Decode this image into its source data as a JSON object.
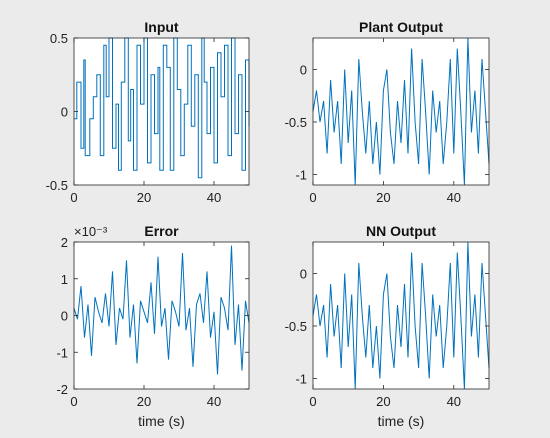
{
  "chart_data": [
    {
      "type": "line",
      "title": "Input",
      "xlabel": "",
      "ylabel": "",
      "xlim": [
        0,
        50
      ],
      "ylim": [
        -0.5,
        0.5
      ],
      "xticks": [
        "0",
        "20",
        "40"
      ],
      "yticks": [
        "-0.5",
        "0",
        "0.5"
      ],
      "exponent_label": "",
      "color": "#0072bd",
      "style": "step",
      "series": [
        {
          "x": [
            0,
            0.8,
            2,
            2.8,
            3.2,
            4.5,
            5.5,
            6.5,
            7.5,
            8.5,
            9.2,
            10,
            11,
            12,
            12.7,
            13.5,
            14.5,
            15.5,
            16.2,
            17,
            18,
            19,
            20,
            21,
            22,
            23,
            24,
            24.5,
            25.5,
            26.5,
            27.5,
            28.5,
            29.5,
            30.5,
            31.5,
            32.5,
            33.5,
            34.5,
            35.5,
            36.5,
            37.2,
            38,
            39,
            40,
            41,
            42,
            43,
            44,
            45,
            46,
            47,
            48,
            49,
            50
          ],
          "y": [
            -0.05,
            0.2,
            -0.25,
            0.35,
            -0.3,
            -0.05,
            0.1,
            0.25,
            -0.3,
            0.45,
            0.1,
            0.5,
            -0.25,
            0.05,
            -0.4,
            0.2,
            0.5,
            -0.2,
            0.15,
            -0.4,
            0.45,
            0.05,
            0.5,
            -0.35,
            0.25,
            -0.15,
            0.3,
            -0.4,
            0.45,
            0.3,
            -0.4,
            0.5,
            0.15,
            -0.3,
            0.05,
            0.45,
            -0.1,
            0.25,
            -0.45,
            0.5,
            0.2,
            -0.15,
            0.3,
            -0.35,
            0.4,
            0.1,
            0.45,
            -0.3,
            0.5,
            -0.15,
            0.25,
            -0.4,
            0.35,
            -0.1
          ]
        }
      ]
    },
    {
      "type": "line",
      "title": "Plant Output",
      "xlabel": "",
      "ylabel": "",
      "xlim": [
        0,
        50
      ],
      "ylim": [
        -1.1,
        0.3
      ],
      "xticks": [
        "0",
        "20",
        "40"
      ],
      "yticks": [
        "-1",
        "-0.5",
        "0"
      ],
      "exponent_label": "",
      "color": "#0072bd",
      "style": "line",
      "series": [
        {
          "x": [
            0,
            1,
            2,
            3,
            4,
            5,
            6,
            7,
            8,
            9,
            10,
            11,
            12,
            13,
            14,
            15,
            16,
            17,
            18,
            19,
            20,
            21,
            22,
            23,
            24,
            25,
            26,
            27,
            28,
            29,
            30,
            31,
            32,
            33,
            34,
            35,
            36,
            37,
            38,
            39,
            40,
            41,
            42,
            43,
            44,
            45,
            46,
            47,
            48,
            49,
            50
          ],
          "y": [
            -0.4,
            -0.2,
            -0.5,
            -0.3,
            -0.8,
            -0.1,
            -0.6,
            -0.3,
            -0.9,
            0.0,
            -0.7,
            -0.2,
            -1.1,
            0.1,
            -0.4,
            -0.8,
            -0.3,
            -0.9,
            -0.5,
            -1.0,
            -0.2,
            0.0,
            -0.6,
            -0.9,
            -0.3,
            -0.7,
            -0.1,
            -0.8,
            0.2,
            -0.5,
            -0.9,
            0.1,
            -0.4,
            -1.0,
            -0.2,
            -0.6,
            -0.3,
            -0.9,
            -0.5,
            0.1,
            -0.8,
            0.2,
            -0.4,
            -1.1,
            0.3,
            -0.6,
            -0.2,
            -0.8,
            0.1,
            -0.4,
            -0.9
          ]
        }
      ]
    },
    {
      "type": "line",
      "title": "Error",
      "xlabel": "time (s)",
      "ylabel": "",
      "xlim": [
        0,
        50
      ],
      "ylim": [
        -2,
        2
      ],
      "xticks": [
        "0",
        "20",
        "40"
      ],
      "yticks": [
        "-2",
        "-1",
        "0",
        "1",
        "2"
      ],
      "exponent_label": "×10⁻³",
      "color": "#0072bd",
      "style": "line",
      "series": [
        {
          "x": [
            0,
            1,
            2,
            3,
            4,
            5,
            6,
            7,
            8,
            9,
            10,
            11,
            12,
            13,
            14,
            15,
            16,
            17,
            18,
            19,
            20,
            21,
            22,
            23,
            24,
            25,
            26,
            27,
            28,
            29,
            30,
            31,
            32,
            33,
            34,
            35,
            36,
            37,
            38,
            39,
            40,
            41,
            42,
            43,
            44,
            45,
            46,
            47,
            48,
            49,
            50
          ],
          "y": [
            0.2,
            -0.1,
            0.8,
            -0.6,
            0.3,
            -1.1,
            0.5,
            0.1,
            -0.2,
            0.6,
            -0.3,
            1.2,
            -0.8,
            0.2,
            -0.1,
            1.5,
            -0.6,
            0.3,
            -1.3,
            0.4,
            0.1,
            -0.2,
            0.9,
            -0.5,
            1.6,
            -0.3,
            0.2,
            -1.2,
            0.4,
            0.1,
            -0.3,
            1.7,
            -0.4,
            0.2,
            -1.4,
            0.3,
            0.6,
            -0.2,
            1.2,
            -0.6,
            0.1,
            -1.6,
            0.5,
            0.2,
            -0.4,
            1.9,
            -0.8,
            0.3,
            -1.5,
            0.4,
            -0.2
          ]
        }
      ]
    },
    {
      "type": "line",
      "title": "NN Output",
      "xlabel": "time (s)",
      "ylabel": "",
      "xlim": [
        0,
        50
      ],
      "ylim": [
        -1.1,
        0.3
      ],
      "xticks": [
        "0",
        "20",
        "40"
      ],
      "yticks": [
        "-1",
        "-0.5",
        "0"
      ],
      "exponent_label": "",
      "color": "#0072bd",
      "style": "line",
      "series": [
        {
          "x": [
            0,
            1,
            2,
            3,
            4,
            5,
            6,
            7,
            8,
            9,
            10,
            11,
            12,
            13,
            14,
            15,
            16,
            17,
            18,
            19,
            20,
            21,
            22,
            23,
            24,
            25,
            26,
            27,
            28,
            29,
            30,
            31,
            32,
            33,
            34,
            35,
            36,
            37,
            38,
            39,
            40,
            41,
            42,
            43,
            44,
            45,
            46,
            47,
            48,
            49,
            50
          ],
          "y": [
            -0.4,
            -0.2,
            -0.5,
            -0.3,
            -0.8,
            -0.1,
            -0.6,
            -0.3,
            -0.9,
            0.0,
            -0.7,
            -0.2,
            -1.1,
            0.1,
            -0.4,
            -0.8,
            -0.3,
            -0.9,
            -0.5,
            -1.0,
            -0.2,
            0.0,
            -0.6,
            -0.9,
            -0.3,
            -0.7,
            -0.1,
            -0.8,
            0.2,
            -0.5,
            -0.9,
            0.1,
            -0.4,
            -1.0,
            -0.2,
            -0.6,
            -0.3,
            -0.9,
            -0.5,
            0.1,
            -0.8,
            0.2,
            -0.4,
            -1.1,
            0.3,
            -0.6,
            -0.2,
            -0.8,
            0.1,
            -0.4,
            -0.9
          ]
        }
      ]
    }
  ]
}
